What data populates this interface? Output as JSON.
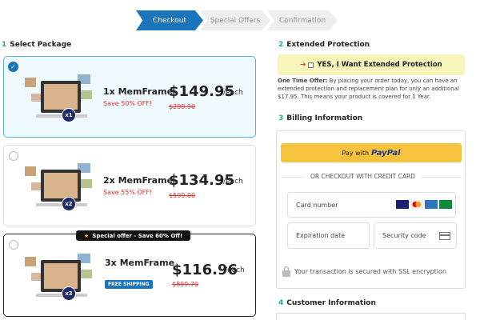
{
  "steps": [
    "Checkout",
    "Special Offers",
    "Confirmation"
  ],
  "packages": {
    "number": "1",
    "heading": "Select Package",
    "items": [
      {
        "name": "1x MemFrame",
        "price": "$149.95",
        "unit": "/each",
        "save": "Save 50% OFF!",
        "old_price": "$299.90",
        "badge": "x1"
      },
      {
        "name": "2x MemFrame",
        "price": "$134.95",
        "unit": "/each",
        "save": "Save 55% OFF!",
        "old_price": "$599.00",
        "badge": "x2"
      },
      {
        "name": "3x MemFrame",
        "price": "$116.96",
        "unit": "/each",
        "ribbon": "Special offer - Save 60% Off!",
        "shipping": "FREE SHIPPING",
        "old_price": "$899.70",
        "badge": "x3"
      }
    ]
  },
  "protection": {
    "number": "2",
    "heading": "Extended Protection",
    "checkbox": "YES, I Want Extended Protection",
    "offer_label": "One Time Offer:",
    "offer_text": "By placing your order today, you can have an extended protection and replacement plan for only an additional $17.95. This means your product is covered for 1 Year."
  },
  "billing": {
    "number": "3",
    "heading": "Billing Information",
    "paypal_prefix": "Pay with",
    "paypal_brand": "PayPal",
    "divider": "OR CHECKOUT WITH CREDIT CARD",
    "card_number": "Card number",
    "expiration": "Expiration date",
    "security_code": "Security code",
    "secure_note": "Your transaction is secured with SSL encryption"
  },
  "customer": {
    "number": "4",
    "heading": "Customer Information"
  }
}
